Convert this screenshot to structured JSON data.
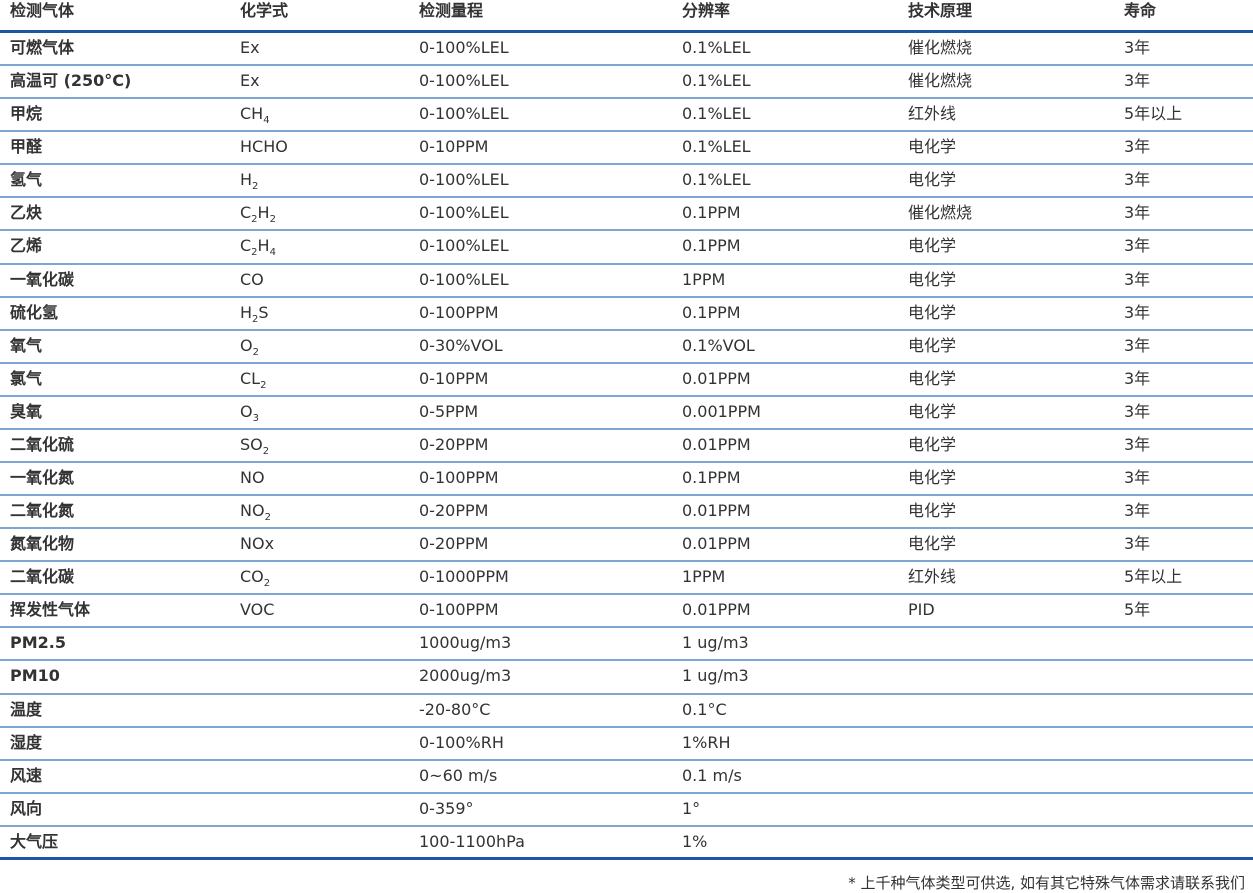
{
  "headers": [
    "检测气体",
    "化学式",
    "检测量程",
    "分辨率",
    "技术原理",
    "寿命"
  ],
  "rows": [
    {
      "gas": "可燃气体",
      "formula": "Ex",
      "range": "0-100%LEL",
      "resolution": "0.1%LEL",
      "principle": "催化燃烧",
      "life": "3年"
    },
    {
      "gas": "高温可 (250°C)",
      "formula": "Ex",
      "range": "0-100%LEL",
      "resolution": "0.1%LEL",
      "principle": "催化燃烧",
      "life": "3年"
    },
    {
      "gas": "甲烷",
      "formula": "CH4",
      "range": "0-100%LEL",
      "resolution": "0.1%LEL",
      "principle": "红外线",
      "life": "5年以上"
    },
    {
      "gas": "甲醛",
      "formula": "HCHO",
      "range": "0-10PPM",
      "resolution": "0.1%LEL",
      "principle": "电化学",
      "life": "3年"
    },
    {
      "gas": "氢气",
      "formula": "H2",
      "range": "0-100%LEL",
      "resolution": "0.1%LEL",
      "principle": "电化学",
      "life": "3年"
    },
    {
      "gas": "乙炔",
      "formula": "C2H2",
      "range": "0-100%LEL",
      "resolution": "0.1PPM",
      "principle": "催化燃烧",
      "life": "3年"
    },
    {
      "gas": "乙烯",
      "formula": "C2H4",
      "range": "0-100%LEL",
      "resolution": "0.1PPM",
      "principle": "电化学",
      "life": "3年"
    },
    {
      "gas": "一氧化碳",
      "formula": "CO",
      "range": "0-100%LEL",
      "resolution": "1PPM",
      "principle": "电化学",
      "life": "3年"
    },
    {
      "gas": "硫化氢",
      "formula": "H2S",
      "range": "0-100PPM",
      "resolution": "0.1PPM",
      "principle": "电化学",
      "life": "3年"
    },
    {
      "gas": "氧气",
      "formula": "O2",
      "range": "0-30%VOL",
      "resolution": "0.1%VOL",
      "principle": "电化学",
      "life": "3年"
    },
    {
      "gas": "氯气",
      "formula": "CL2",
      "range": "0-10PPM",
      "resolution": "0.01PPM",
      "principle": "电化学",
      "life": "3年"
    },
    {
      "gas": "臭氧",
      "formula": "O3",
      "range": "0-5PPM",
      "resolution": "0.001PPM",
      "principle": "电化学",
      "life": "3年"
    },
    {
      "gas": "二氧化硫",
      "formula": "SO2",
      "range": "0-20PPM",
      "resolution": "0.01PPM",
      "principle": "电化学",
      "life": "3年"
    },
    {
      "gas": "一氧化氮",
      "formula": "NO",
      "range": "0-100PPM",
      "resolution": "0.1PPM",
      "principle": "电化学",
      "life": "3年"
    },
    {
      "gas": "二氧化氮",
      "formula": "NO2",
      "range": "0-20PPM",
      "resolution": "0.01PPM",
      "principle": "电化学",
      "life": "3年"
    },
    {
      "gas": "氮氧化物",
      "formula": "NOx",
      "range": "0-20PPM",
      "resolution": "0.01PPM",
      "principle": "电化学",
      "life": "3年"
    },
    {
      "gas": "二氧化碳",
      "formula": "CO2",
      "range": "0-1000PPM",
      "resolution": "1PPM",
      "principle": "红外线",
      "life": "5年以上"
    },
    {
      "gas": "挥发性气体",
      "formula": "VOC",
      "range": "0-100PPM",
      "resolution": "0.01PPM",
      "principle": "PID",
      "life": "5年"
    },
    {
      "gas": "PM2.5",
      "formula": "",
      "range": "1000ug/m3",
      "resolution": "1 ug/m3",
      "principle": "",
      "life": ""
    },
    {
      "gas": "PM10",
      "formula": "",
      "range": "2000ug/m3",
      "resolution": "1 ug/m3",
      "principle": "",
      "life": ""
    },
    {
      "gas": "温度",
      "formula": "",
      "range": "-20-80°C",
      "resolution": "0.1°C",
      "principle": "",
      "life": ""
    },
    {
      "gas": "湿度",
      "formula": "",
      "range": "0-100%RH",
      "resolution": "1%RH",
      "principle": "",
      "life": ""
    },
    {
      "gas": "风速",
      "formula": "",
      "range": "0~60 m/s",
      "resolution": "0.1 m/s",
      "principle": "",
      "life": ""
    },
    {
      "gas": "风向",
      "formula": "",
      "range": "0-359°",
      "resolution": "1°",
      "principle": "",
      "life": ""
    },
    {
      "gas": "大气压",
      "formula": "",
      "range": "100-1100hPa",
      "resolution": "1%",
      "principle": "",
      "life": ""
    }
  ],
  "footnote": "*   上千种气体类型可供选, 如有其它特殊气体需求请联系我们",
  "colors": {
    "header_rule": "#1f56a0",
    "row_rule": "#7ea6d3",
    "text": "#333333"
  }
}
